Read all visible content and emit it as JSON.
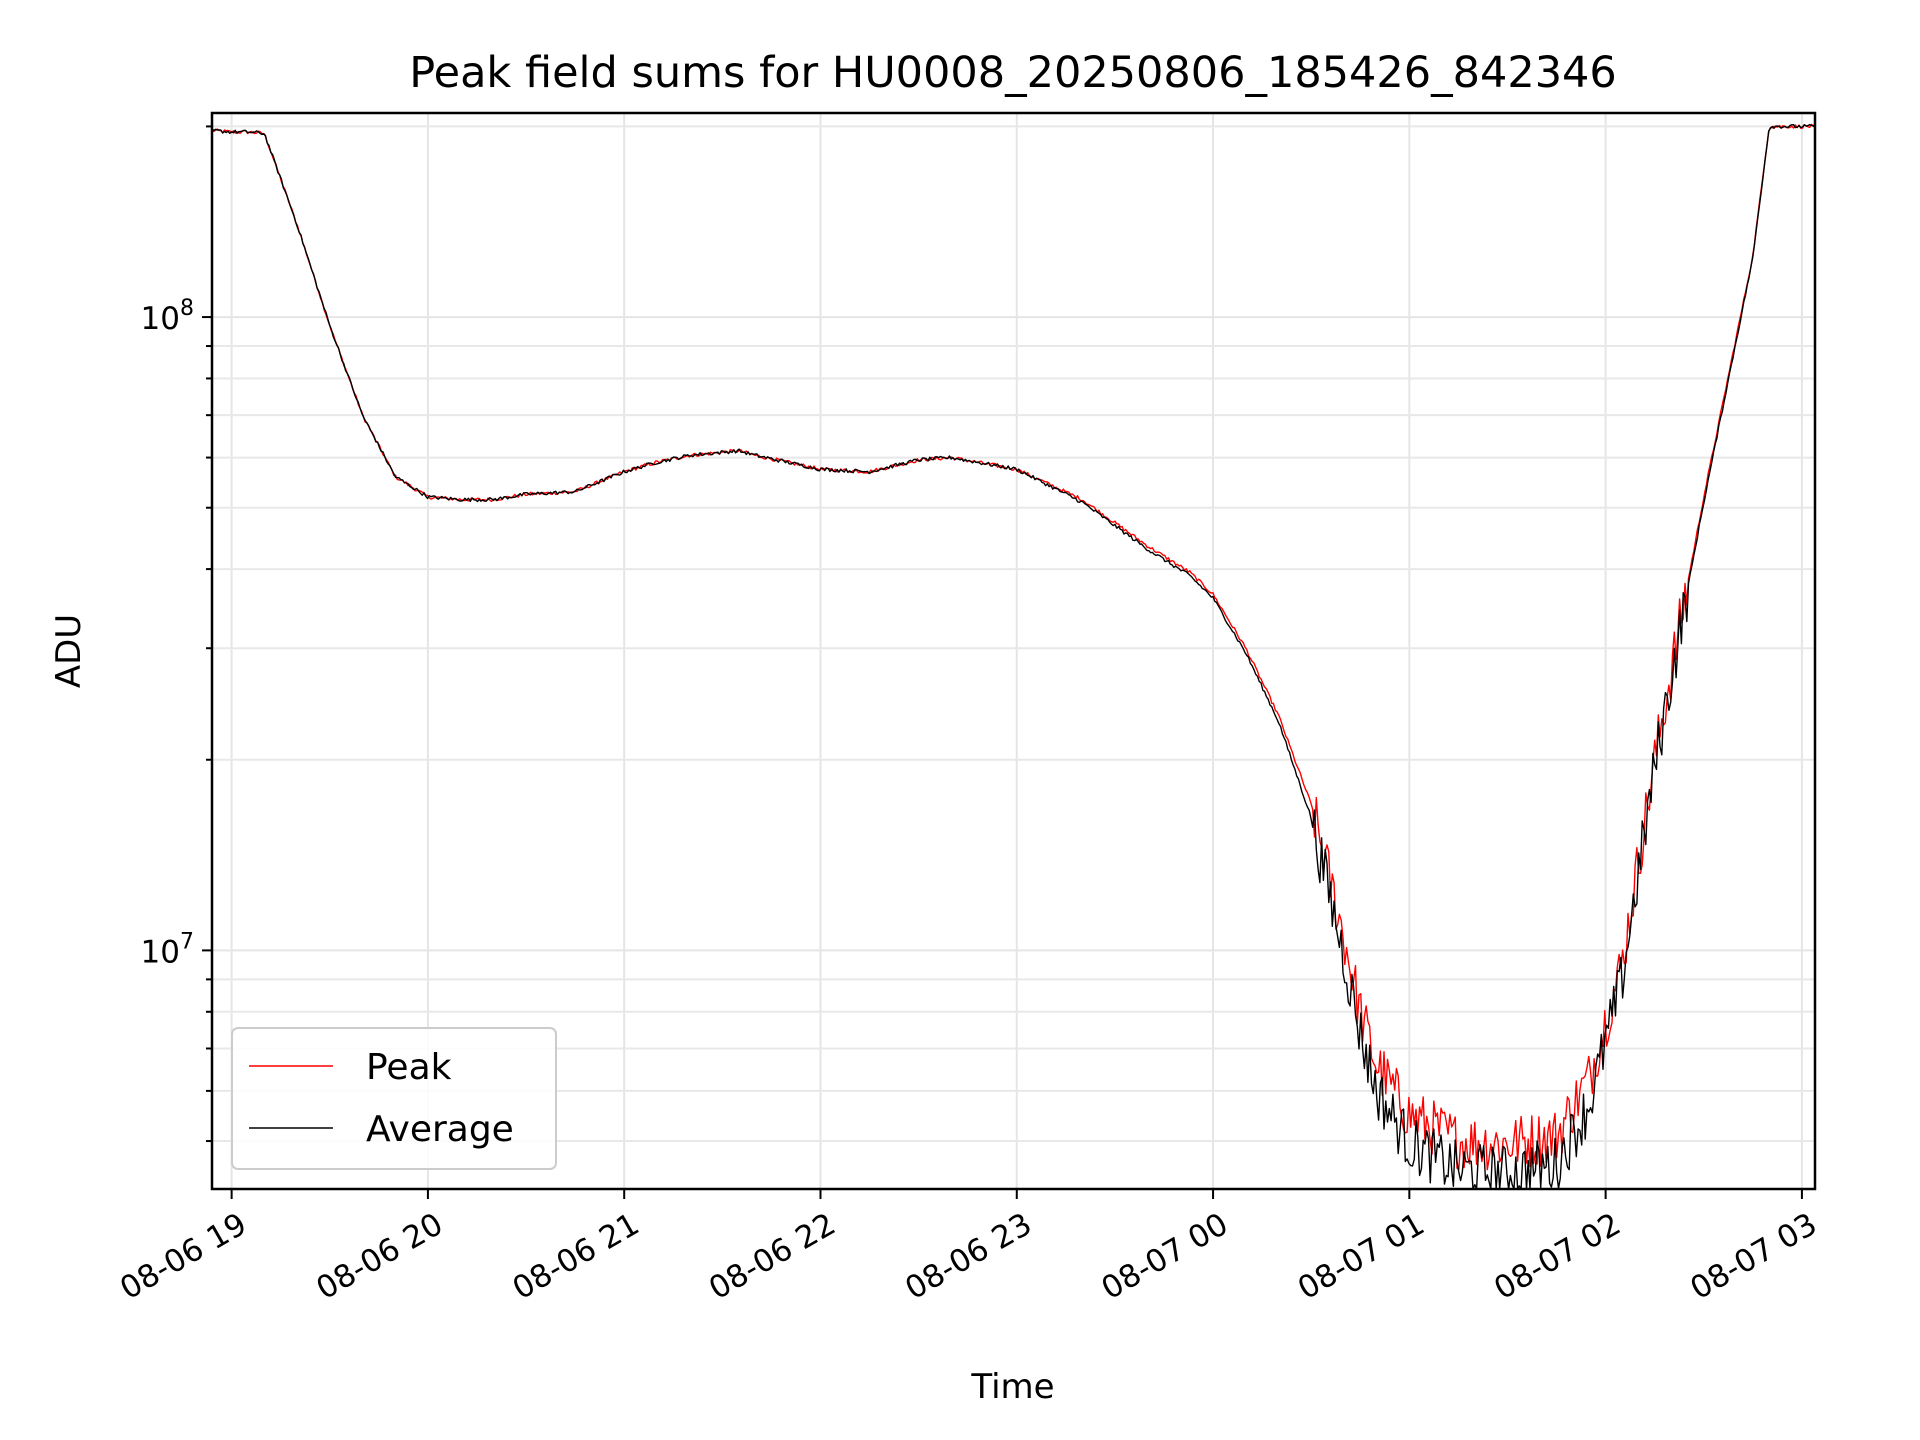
{
  "chart_data": {
    "type": "line",
    "title": "Peak field sums for HU0008_20250806_185426_842346",
    "xlabel": "Time",
    "ylabel": "ADU",
    "y_scale": "log",
    "xlim": [
      "2025-08-06 18:54",
      "2025-08-07 03:04"
    ],
    "ylim": [
      4200000,
      210000000
    ],
    "x_ticks": [
      {
        "t": "2025-08-06 19:00",
        "label": "08-06 19"
      },
      {
        "t": "2025-08-06 20:00",
        "label": "08-06 20"
      },
      {
        "t": "2025-08-06 21:00",
        "label": "08-06 21"
      },
      {
        "t": "2025-08-06 22:00",
        "label": "08-06 22"
      },
      {
        "t": "2025-08-06 23:00",
        "label": "08-06 23"
      },
      {
        "t": "2025-08-07 00:00",
        "label": "08-07 00"
      },
      {
        "t": "2025-08-07 01:00",
        "label": "08-07 01"
      },
      {
        "t": "2025-08-07 02:00",
        "label": "08-07 02"
      },
      {
        "t": "2025-08-07 03:00",
        "label": "08-07 03"
      }
    ],
    "y_ticks": [
      {
        "value": 10000000,
        "base": "10",
        "exp": "7"
      },
      {
        "value": 100000000,
        "base": "10",
        "exp": "8"
      }
    ],
    "grid": true,
    "legend": "lower left",
    "series": [
      {
        "name": "Peak",
        "color": "#ff0000",
        "noisy_after": "2025-08-07 00:30",
        "points": [
          [
            "2025-08-06 18:54",
            197000000
          ],
          [
            "2025-08-06 19:00",
            196000000
          ],
          [
            "2025-08-06 19:05",
            196000000
          ],
          [
            "2025-08-06 19:10",
            195000000
          ],
          [
            "2025-08-06 19:20",
            140000000
          ],
          [
            "2025-08-06 19:30",
            97000000
          ],
          [
            "2025-08-06 19:40",
            70000000
          ],
          [
            "2025-08-06 19:50",
            56000000
          ],
          [
            "2025-08-06 20:00",
            52000000
          ],
          [
            "2025-08-06 20:10",
            51500000
          ],
          [
            "2025-08-06 20:20",
            51500000
          ],
          [
            "2025-08-06 20:30",
            52500000
          ],
          [
            "2025-08-06 20:45",
            53000000
          ],
          [
            "2025-08-06 21:00",
            57000000
          ],
          [
            "2025-08-06 21:10",
            59000000
          ],
          [
            "2025-08-06 21:20",
            60500000
          ],
          [
            "2025-08-06 21:35",
            61500000
          ],
          [
            "2025-08-06 21:40",
            60500000
          ],
          [
            "2025-08-06 22:00",
            57500000
          ],
          [
            "2025-08-06 22:15",
            57000000
          ],
          [
            "2025-08-06 22:30",
            59500000
          ],
          [
            "2025-08-06 22:40",
            60000000
          ],
          [
            "2025-08-06 23:00",
            57500000
          ],
          [
            "2025-08-06 23:20",
            51500000
          ],
          [
            "2025-08-06 23:40",
            43500000
          ],
          [
            "2025-08-06 23:53",
            39500000
          ],
          [
            "2025-08-07 00:00",
            36500000
          ],
          [
            "2025-08-07 00:10",
            30000000
          ],
          [
            "2025-08-07 00:20",
            23500000
          ],
          [
            "2025-08-07 00:30",
            17000000
          ],
          [
            "2025-08-07 00:40",
            10500000
          ],
          [
            "2025-08-07 00:45",
            8000000
          ],
          [
            "2025-08-07 00:50",
            6600000
          ],
          [
            "2025-08-07 01:00",
            5500000
          ],
          [
            "2025-08-07 01:15",
            5000000
          ],
          [
            "2025-08-07 01:30",
            4950000
          ],
          [
            "2025-08-07 01:45",
            5100000
          ],
          [
            "2025-08-07 01:55",
            6300000
          ],
          [
            "2025-08-07 02:05",
            9500000
          ],
          [
            "2025-08-07 02:15",
            20000000
          ],
          [
            "2025-08-07 02:30",
            52000000
          ],
          [
            "2025-08-07 02:45",
            125000000
          ],
          [
            "2025-08-07 02:50",
            200000000
          ],
          [
            "2025-08-07 03:04",
            200000000
          ]
        ]
      },
      {
        "name": "Average",
        "color": "#000000",
        "noisy_after": "2025-08-07 00:30",
        "points": [
          [
            "2025-08-06 18:54",
            197000000
          ],
          [
            "2025-08-06 19:00",
            196000000
          ],
          [
            "2025-08-06 19:05",
            196000000
          ],
          [
            "2025-08-06 19:10",
            195000000
          ],
          [
            "2025-08-06 19:20",
            140000000
          ],
          [
            "2025-08-06 19:30",
            97000000
          ],
          [
            "2025-08-06 19:40",
            70000000
          ],
          [
            "2025-08-06 19:50",
            56000000
          ],
          [
            "2025-08-06 20:00",
            52000000
          ],
          [
            "2025-08-06 20:10",
            51500000
          ],
          [
            "2025-08-06 20:20",
            51500000
          ],
          [
            "2025-08-06 20:30",
            52500000
          ],
          [
            "2025-08-06 20:45",
            53000000
          ],
          [
            "2025-08-06 21:00",
            57000000
          ],
          [
            "2025-08-06 21:10",
            59000000
          ],
          [
            "2025-08-06 21:20",
            60500000
          ],
          [
            "2025-08-06 21:35",
            61500000
          ],
          [
            "2025-08-06 21:40",
            60500000
          ],
          [
            "2025-08-06 22:00",
            57500000
          ],
          [
            "2025-08-06 22:15",
            57000000
          ],
          [
            "2025-08-06 22:30",
            59500000
          ],
          [
            "2025-08-06 22:40",
            60000000
          ],
          [
            "2025-08-06 23:00",
            57500000
          ],
          [
            "2025-08-06 23:20",
            51000000
          ],
          [
            "2025-08-06 23:40",
            43000000
          ],
          [
            "2025-08-06 23:53",
            39000000
          ],
          [
            "2025-08-07 00:00",
            36000000
          ],
          [
            "2025-08-07 00:10",
            29500000
          ],
          [
            "2025-08-07 00:20",
            23000000
          ],
          [
            "2025-08-07 00:30",
            16200000
          ],
          [
            "2025-08-07 00:40",
            9800000
          ],
          [
            "2025-08-07 00:45",
            7400000
          ],
          [
            "2025-08-07 00:50",
            6000000
          ],
          [
            "2025-08-07 01:00",
            4950000
          ],
          [
            "2025-08-07 01:15",
            4500000
          ],
          [
            "2025-08-07 01:30",
            4450000
          ],
          [
            "2025-08-07 01:45",
            4600000
          ],
          [
            "2025-08-07 01:55",
            5700000
          ],
          [
            "2025-08-07 02:05",
            9000000
          ],
          [
            "2025-08-07 02:15",
            19500000
          ],
          [
            "2025-08-07 02:30",
            51000000
          ],
          [
            "2025-08-07 02:45",
            124000000
          ],
          [
            "2025-08-07 02:50",
            200000000
          ],
          [
            "2025-08-07 03:04",
            200000000
          ]
        ]
      }
    ]
  }
}
